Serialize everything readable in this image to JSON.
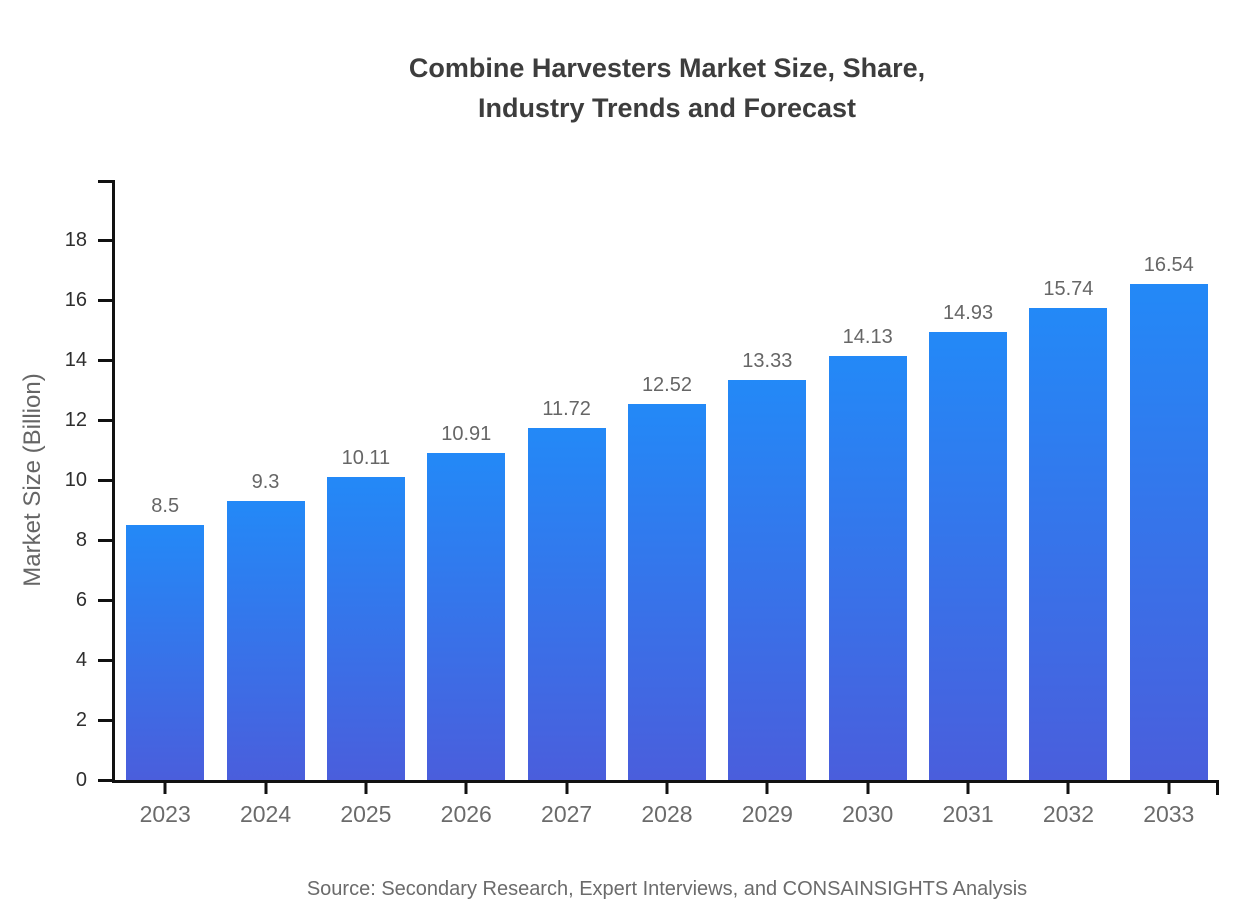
{
  "title": {
    "line1": "Combine Harvesters Market Size, Share,",
    "line2": "Industry Trends and Forecast"
  },
  "source": "Source: Secondary Research, Expert Interviews, and CONSAINSIGHTS Analysis",
  "chart_data": {
    "type": "bar",
    "title": "Combine Harvesters Market Size, Share, Industry Trends and Forecast",
    "categories": [
      "2023",
      "2024",
      "2025",
      "2026",
      "2027",
      "2028",
      "2029",
      "2030",
      "2031",
      "2032",
      "2033"
    ],
    "values": [
      8.5,
      9.3,
      10.11,
      10.91,
      11.72,
      12.52,
      13.33,
      14.13,
      14.93,
      15.74,
      16.54
    ],
    "value_labels": [
      "8.5",
      "9.3",
      "10.11",
      "10.91",
      "11.72",
      "12.52",
      "13.33",
      "14.13",
      "14.93",
      "15.74",
      "16.54"
    ],
    "xlabel": "",
    "ylabel": "Market Size (Billion)",
    "ylim": [
      0,
      20
    ],
    "yticks": [
      0,
      2,
      4,
      6,
      8,
      10,
      12,
      14,
      16,
      18
    ],
    "grid": false,
    "legend_position": "none",
    "colors": {
      "bar_gradient_top": "#2389f7",
      "bar_gradient_bottom": "#4a5edc",
      "axis": "#111111",
      "title_text": "#3d3d3d",
      "tick_label": "#2e2e2e",
      "category_label": "#6b6b6b",
      "value_label": "#666666",
      "source_text": "#6b6b6b"
    }
  }
}
